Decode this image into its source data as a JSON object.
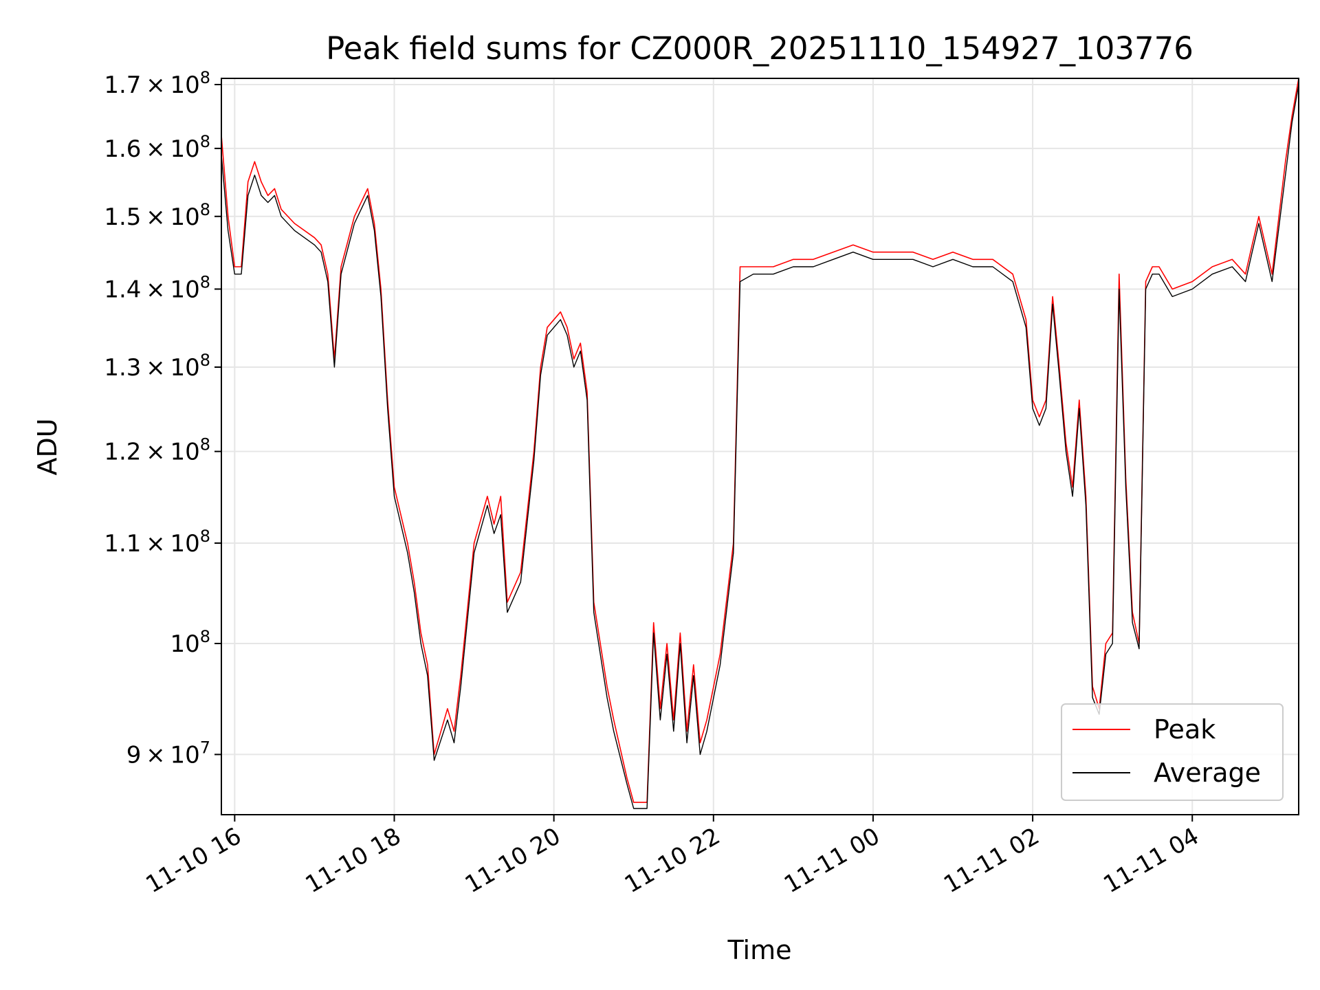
{
  "chart_data": {
    "type": "line",
    "title": "Peak field sums for CZ000R_20251110_154927_103776",
    "xlabel": "Time",
    "ylabel": "ADU",
    "yscale": "log",
    "xlim": [
      "2025-11-10 15:50",
      "2025-11-11 05:20"
    ],
    "ylim": [
      85000000,
      171000000
    ],
    "grid": true,
    "legend_position": "lower-right",
    "x_ticks": [
      {
        "t": "2025-11-10 16:00",
        "label": "11-10 16"
      },
      {
        "t": "2025-11-10 18:00",
        "label": "11-10 18"
      },
      {
        "t": "2025-11-10 20:00",
        "label": "11-10 20"
      },
      {
        "t": "2025-11-10 22:00",
        "label": "11-10 22"
      },
      {
        "t": "2025-11-11 00:00",
        "label": "11-11 00"
      },
      {
        "t": "2025-11-11 02:00",
        "label": "11-11 02"
      },
      {
        "t": "2025-11-11 04:00",
        "label": "11-11 04"
      }
    ],
    "y_ticks": [
      {
        "value": 90000000,
        "mantissa": "9",
        "exponent": "7"
      },
      {
        "value": 100000000,
        "mantissa": "",
        "exponent": "8"
      },
      {
        "value": 110000000,
        "mantissa": "1.1",
        "exponent": "8"
      },
      {
        "value": 120000000,
        "mantissa": "1.2",
        "exponent": "8"
      },
      {
        "value": 130000000,
        "mantissa": "1.3",
        "exponent": "8"
      },
      {
        "value": 140000000,
        "mantissa": "1.4",
        "exponent": "8"
      },
      {
        "value": 150000000,
        "mantissa": "1.5",
        "exponent": "8"
      },
      {
        "value": 160000000,
        "mantissa": "1.6",
        "exponent": "8"
      },
      {
        "value": 170000000,
        "mantissa": "1.7",
        "exponent": "8"
      }
    ],
    "series": [
      {
        "name": "Peak",
        "color": "#ff0000",
        "x": [
          "2025-11-10 15:50",
          "2025-11-10 15:55",
          "2025-11-10 16:00",
          "2025-11-10 16:05",
          "2025-11-10 16:10",
          "2025-11-10 16:15",
          "2025-11-10 16:20",
          "2025-11-10 16:25",
          "2025-11-10 16:30",
          "2025-11-10 16:35",
          "2025-11-10 16:45",
          "2025-11-10 17:00",
          "2025-11-10 17:05",
          "2025-11-10 17:10",
          "2025-11-10 17:15",
          "2025-11-10 17:20",
          "2025-11-10 17:30",
          "2025-11-10 17:40",
          "2025-11-10 17:45",
          "2025-11-10 17:50",
          "2025-11-10 17:55",
          "2025-11-10 18:00",
          "2025-11-10 18:10",
          "2025-11-10 18:15",
          "2025-11-10 18:20",
          "2025-11-10 18:25",
          "2025-11-10 18:30",
          "2025-11-10 18:40",
          "2025-11-10 18:45",
          "2025-11-10 18:50",
          "2025-11-10 19:00",
          "2025-11-10 19:10",
          "2025-11-10 19:15",
          "2025-11-10 19:20",
          "2025-11-10 19:25",
          "2025-11-10 19:35",
          "2025-11-10 19:45",
          "2025-11-10 19:50",
          "2025-11-10 19:55",
          "2025-11-10 20:05",
          "2025-11-10 20:10",
          "2025-11-10 20:15",
          "2025-11-10 20:20",
          "2025-11-10 20:25",
          "2025-11-10 20:30",
          "2025-11-10 20:40",
          "2025-11-10 20:45",
          "2025-11-10 20:55",
          "2025-11-10 21:00",
          "2025-11-10 21:10",
          "2025-11-10 21:15",
          "2025-11-10 21:20",
          "2025-11-10 21:25",
          "2025-11-10 21:30",
          "2025-11-10 21:35",
          "2025-11-10 21:40",
          "2025-11-10 21:45",
          "2025-11-10 21:50",
          "2025-11-10 21:55",
          "2025-11-10 22:05",
          "2025-11-10 22:15",
          "2025-11-10 22:20",
          "2025-11-10 22:30",
          "2025-11-10 22:45",
          "2025-11-10 23:00",
          "2025-11-10 23:15",
          "2025-11-10 23:30",
          "2025-11-10 23:45",
          "2025-11-11 00:00",
          "2025-11-11 00:15",
          "2025-11-11 00:30",
          "2025-11-11 00:45",
          "2025-11-11 01:00",
          "2025-11-11 01:15",
          "2025-11-11 01:30",
          "2025-11-11 01:45",
          "2025-11-11 01:55",
          "2025-11-11 02:00",
          "2025-11-11 02:05",
          "2025-11-11 02:10",
          "2025-11-11 02:15",
          "2025-11-11 02:20",
          "2025-11-11 02:25",
          "2025-11-11 02:30",
          "2025-11-11 02:35",
          "2025-11-11 02:40",
          "2025-11-11 02:45",
          "2025-11-11 02:50",
          "2025-11-11 02:55",
          "2025-11-11 03:00",
          "2025-11-11 03:05",
          "2025-11-11 03:10",
          "2025-11-11 03:15",
          "2025-11-11 03:20",
          "2025-11-11 03:25",
          "2025-11-11 03:30",
          "2025-11-11 03:35",
          "2025-11-11 03:45",
          "2025-11-11 04:00",
          "2025-11-11 04:15",
          "2025-11-11 04:30",
          "2025-11-11 04:40",
          "2025-11-11 04:45",
          "2025-11-11 04:50",
          "2025-11-11 05:00",
          "2025-11-11 05:10",
          "2025-11-11 05:15",
          "2025-11-11 05:20"
        ],
        "values": [
          162000000,
          150000000,
          143000000,
          143000000,
          155000000,
          158000000,
          155000000,
          153000000,
          154000000,
          151000000,
          149000000,
          147000000,
          146000000,
          142000000,
          131000000,
          143000000,
          150000000,
          154000000,
          149000000,
          140000000,
          126000000,
          116000000,
          110000000,
          106000000,
          101000000,
          98000000,
          90000000,
          94000000,
          92000000,
          97000000,
          110000000,
          115000000,
          112000000,
          115000000,
          104000000,
          107000000,
          120000000,
          130000000,
          135000000,
          137000000,
          135000000,
          131000000,
          133000000,
          127000000,
          104000000,
          96000000,
          93000000,
          88000000,
          86000000,
          86000000,
          102000000,
          94000000,
          100000000,
          93000000,
          101000000,
          92000000,
          98000000,
          91000000,
          93000000,
          99000000,
          110000000,
          143000000,
          143000000,
          143000000,
          144000000,
          144000000,
          145000000,
          146000000,
          145000000,
          145000000,
          145000000,
          144000000,
          145000000,
          144000000,
          144000000,
          142000000,
          136000000,
          126000000,
          124000000,
          126000000,
          139000000,
          130000000,
          121000000,
          116000000,
          126000000,
          115000000,
          96000000,
          94000000,
          100000000,
          101000000,
          142000000,
          117000000,
          103000000,
          100000000,
          141000000,
          143000000,
          143000000,
          140000000,
          141000000,
          143000000,
          144000000,
          142000000,
          146000000,
          150000000,
          142000000,
          158000000,
          165000000,
          171000000
        ]
      },
      {
        "name": "Average",
        "color": "#000000",
        "x": [
          "2025-11-10 15:50",
          "2025-11-10 15:55",
          "2025-11-10 16:00",
          "2025-11-10 16:05",
          "2025-11-10 16:10",
          "2025-11-10 16:15",
          "2025-11-10 16:20",
          "2025-11-10 16:25",
          "2025-11-10 16:30",
          "2025-11-10 16:35",
          "2025-11-10 16:45",
          "2025-11-10 17:00",
          "2025-11-10 17:05",
          "2025-11-10 17:10",
          "2025-11-10 17:15",
          "2025-11-10 17:20",
          "2025-11-10 17:30",
          "2025-11-10 17:40",
          "2025-11-10 17:45",
          "2025-11-10 17:50",
          "2025-11-10 17:55",
          "2025-11-10 18:00",
          "2025-11-10 18:10",
          "2025-11-10 18:15",
          "2025-11-10 18:20",
          "2025-11-10 18:25",
          "2025-11-10 18:30",
          "2025-11-10 18:40",
          "2025-11-10 18:45",
          "2025-11-10 18:50",
          "2025-11-10 19:00",
          "2025-11-10 19:10",
          "2025-11-10 19:15",
          "2025-11-10 19:20",
          "2025-11-10 19:25",
          "2025-11-10 19:35",
          "2025-11-10 19:45",
          "2025-11-10 19:50",
          "2025-11-10 19:55",
          "2025-11-10 20:05",
          "2025-11-10 20:10",
          "2025-11-10 20:15",
          "2025-11-10 20:20",
          "2025-11-10 20:25",
          "2025-11-10 20:30",
          "2025-11-10 20:40",
          "2025-11-10 20:45",
          "2025-11-10 20:55",
          "2025-11-10 21:00",
          "2025-11-10 21:10",
          "2025-11-10 21:15",
          "2025-11-10 21:20",
          "2025-11-10 21:25",
          "2025-11-10 21:30",
          "2025-11-10 21:35",
          "2025-11-10 21:40",
          "2025-11-10 21:45",
          "2025-11-10 21:50",
          "2025-11-10 21:55",
          "2025-11-10 22:05",
          "2025-11-10 22:15",
          "2025-11-10 22:20",
          "2025-11-10 22:30",
          "2025-11-10 22:45",
          "2025-11-10 23:00",
          "2025-11-10 23:15",
          "2025-11-10 23:30",
          "2025-11-10 23:45",
          "2025-11-11 00:00",
          "2025-11-11 00:15",
          "2025-11-11 00:30",
          "2025-11-11 00:45",
          "2025-11-11 01:00",
          "2025-11-11 01:15",
          "2025-11-11 01:30",
          "2025-11-11 01:45",
          "2025-11-11 01:55",
          "2025-11-11 02:00",
          "2025-11-11 02:05",
          "2025-11-11 02:10",
          "2025-11-11 02:15",
          "2025-11-11 02:20",
          "2025-11-11 02:25",
          "2025-11-11 02:30",
          "2025-11-11 02:35",
          "2025-11-11 02:40",
          "2025-11-11 02:45",
          "2025-11-11 02:50",
          "2025-11-11 02:55",
          "2025-11-11 03:00",
          "2025-11-11 03:05",
          "2025-11-11 03:10",
          "2025-11-11 03:15",
          "2025-11-11 03:20",
          "2025-11-11 03:25",
          "2025-11-11 03:30",
          "2025-11-11 03:35",
          "2025-11-11 03:45",
          "2025-11-11 04:00",
          "2025-11-11 04:15",
          "2025-11-11 04:30",
          "2025-11-11 04:40",
          "2025-11-11 04:45",
          "2025-11-11 04:50",
          "2025-11-11 05:00",
          "2025-11-11 05:10",
          "2025-11-11 05:15",
          "2025-11-11 05:20"
        ],
        "values": [
          159000000,
          148000000,
          142000000,
          142000000,
          153000000,
          156000000,
          153000000,
          152000000,
          153000000,
          150000000,
          148000000,
          146000000,
          145000000,
          141000000,
          130000000,
          142000000,
          149000000,
          153000000,
          148000000,
          139000000,
          125000000,
          115000000,
          109000000,
          105000000,
          100000000,
          97000000,
          89500000,
          93000000,
          91000000,
          96000000,
          109000000,
          114000000,
          111000000,
          113000000,
          103000000,
          106000000,
          119000000,
          129000000,
          134000000,
          136000000,
          134000000,
          130000000,
          132000000,
          126000000,
          103000000,
          95000000,
          92000000,
          87500000,
          85500000,
          85500000,
          101000000,
          93000000,
          99000000,
          92000000,
          100000000,
          91000000,
          97000000,
          90000000,
          92000000,
          98000000,
          109000000,
          141000000,
          142000000,
          142000000,
          143000000,
          143000000,
          144000000,
          145000000,
          144000000,
          144000000,
          144000000,
          143000000,
          144000000,
          143000000,
          143000000,
          141000000,
          135000000,
          125000000,
          123000000,
          125000000,
          138000000,
          129000000,
          120000000,
          115000000,
          125000000,
          114000000,
          95000000,
          93500000,
          99000000,
          100000000,
          140000000,
          116000000,
          102000000,
          99500000,
          140000000,
          142000000,
          142000000,
          139000000,
          140000000,
          142000000,
          143000000,
          141000000,
          145000000,
          149000000,
          141000000,
          156000000,
          164000000,
          170000000
        ]
      }
    ]
  }
}
